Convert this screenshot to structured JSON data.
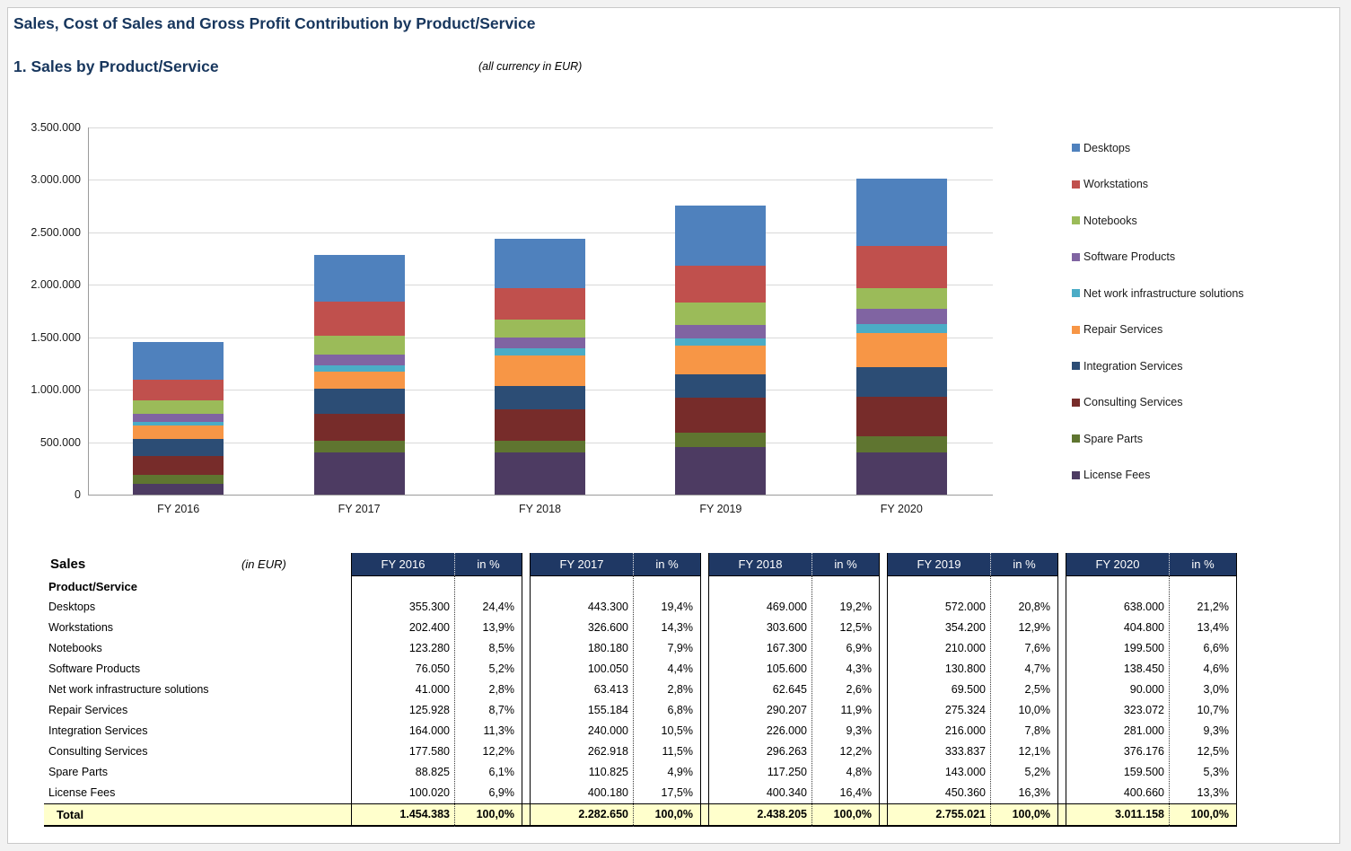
{
  "page": {
    "title": "Sales, Cost of Sales and Gross Profit Contribution by Product/Service",
    "section_title": "1. Sales by Product/Service",
    "currency_note": "(all currency in EUR)"
  },
  "chart_data": {
    "type": "bar",
    "stacked": true,
    "title": "Sales by Product/Service",
    "categories": [
      "FY 2016",
      "FY 2017",
      "FY 2018",
      "FY 2019",
      "FY 2020"
    ],
    "series": [
      {
        "name": "Desktops",
        "color": "#4F81BD",
        "values": [
          355300,
          443300,
          469000,
          572000,
          638000
        ]
      },
      {
        "name": "Workstations",
        "color": "#C0504D",
        "values": [
          202400,
          326600,
          303600,
          354200,
          404800
        ]
      },
      {
        "name": "Notebooks",
        "color": "#9BBB59",
        "values": [
          123280,
          180180,
          167300,
          210000,
          199500
        ]
      },
      {
        "name": "Software Products",
        "color": "#8064A2",
        "values": [
          76050,
          100050,
          105600,
          130800,
          138450
        ]
      },
      {
        "name": "Net work infrastructure solutions",
        "color": "#4BACC6",
        "values": [
          41000,
          63413,
          62645,
          69500,
          90000
        ]
      },
      {
        "name": "Repair Services",
        "color": "#F79646",
        "values": [
          125928,
          155184,
          290207,
          275324,
          323072
        ]
      },
      {
        "name": "Integration Services",
        "color": "#2C4D75",
        "values": [
          164000,
          240000,
          226000,
          216000,
          281000
        ]
      },
      {
        "name": "Consulting Services",
        "color": "#772C2A",
        "values": [
          177580,
          262918,
          296263,
          333837,
          376176
        ]
      },
      {
        "name": "Spare Parts",
        "color": "#5F7530",
        "values": [
          88825,
          110825,
          117250,
          143000,
          159500
        ]
      },
      {
        "name": "License Fees",
        "color": "#4D3B62",
        "values": [
          100020,
          400180,
          400340,
          450360,
          400660
        ]
      }
    ],
    "ylim": [
      0,
      3500000
    ],
    "ytick_step": 500000,
    "ytick_labels": [
      "3.500.000",
      "3.000.000",
      "2.500.000",
      "2.000.000",
      "1.500.000",
      "1.000.000",
      "500.000",
      "0"
    ],
    "grid": true,
    "legend_position": "right"
  },
  "table": {
    "title": "Sales",
    "unit_note": "(in EUR)",
    "row_header": "Product/Service",
    "percent_header": "in %",
    "year_headers": [
      "FY 2016",
      "FY 2017",
      "FY 2018",
      "FY 2019",
      "FY 2020"
    ],
    "rows": [
      {
        "label": "Desktops",
        "cells": [
          [
            "355.300",
            "24,4%"
          ],
          [
            "443.300",
            "19,4%"
          ],
          [
            "469.000",
            "19,2%"
          ],
          [
            "572.000",
            "20,8%"
          ],
          [
            "638.000",
            "21,2%"
          ]
        ]
      },
      {
        "label": "Workstations",
        "cells": [
          [
            "202.400",
            "13,9%"
          ],
          [
            "326.600",
            "14,3%"
          ],
          [
            "303.600",
            "12,5%"
          ],
          [
            "354.200",
            "12,9%"
          ],
          [
            "404.800",
            "13,4%"
          ]
        ]
      },
      {
        "label": "Notebooks",
        "cells": [
          [
            "123.280",
            "8,5%"
          ],
          [
            "180.180",
            "7,9%"
          ],
          [
            "167.300",
            "6,9%"
          ],
          [
            "210.000",
            "7,6%"
          ],
          [
            "199.500",
            "6,6%"
          ]
        ]
      },
      {
        "label": "Software Products",
        "cells": [
          [
            "76.050",
            "5,2%"
          ],
          [
            "100.050",
            "4,4%"
          ],
          [
            "105.600",
            "4,3%"
          ],
          [
            "130.800",
            "4,7%"
          ],
          [
            "138.450",
            "4,6%"
          ]
        ]
      },
      {
        "label": "Net work infrastructure solutions",
        "cells": [
          [
            "41.000",
            "2,8%"
          ],
          [
            "63.413",
            "2,8%"
          ],
          [
            "62.645",
            "2,6%"
          ],
          [
            "69.500",
            "2,5%"
          ],
          [
            "90.000",
            "3,0%"
          ]
        ]
      },
      {
        "label": "Repair Services",
        "cells": [
          [
            "125.928",
            "8,7%"
          ],
          [
            "155.184",
            "6,8%"
          ],
          [
            "290.207",
            "11,9%"
          ],
          [
            "275.324",
            "10,0%"
          ],
          [
            "323.072",
            "10,7%"
          ]
        ]
      },
      {
        "label": "Integration Services",
        "cells": [
          [
            "164.000",
            "11,3%"
          ],
          [
            "240.000",
            "10,5%"
          ],
          [
            "226.000",
            "9,3%"
          ],
          [
            "216.000",
            "7,8%"
          ],
          [
            "281.000",
            "9,3%"
          ]
        ]
      },
      {
        "label": "Consulting Services",
        "cells": [
          [
            "177.580",
            "12,2%"
          ],
          [
            "262.918",
            "11,5%"
          ],
          [
            "296.263",
            "12,2%"
          ],
          [
            "333.837",
            "12,1%"
          ],
          [
            "376.176",
            "12,5%"
          ]
        ]
      },
      {
        "label": "Spare Parts",
        "cells": [
          [
            "88.825",
            "6,1%"
          ],
          [
            "110.825",
            "4,9%"
          ],
          [
            "117.250",
            "4,8%"
          ],
          [
            "143.000",
            "5,2%"
          ],
          [
            "159.500",
            "5,3%"
          ]
        ]
      },
      {
        "label": "License Fees",
        "cells": [
          [
            "100.020",
            "6,9%"
          ],
          [
            "400.180",
            "17,5%"
          ],
          [
            "400.340",
            "16,4%"
          ],
          [
            "450.360",
            "16,3%"
          ],
          [
            "400.660",
            "13,3%"
          ]
        ]
      }
    ],
    "total": {
      "label": "Total",
      "cells": [
        [
          "1.454.383",
          "100,0%"
        ],
        [
          "2.282.650",
          "100,0%"
        ],
        [
          "2.438.205",
          "100,0%"
        ],
        [
          "2.755.021",
          "100,0%"
        ],
        [
          "3.011.158",
          "100,0%"
        ]
      ]
    }
  },
  "colors": {
    "title_text": "#17365D",
    "table_header_bg": "#1F3864",
    "table_header_text": "#FFFFFF",
    "total_row_bg": "#FFFFCC",
    "page_bg": "#FFFFFF",
    "outer_bg": "#F2F2F2"
  }
}
